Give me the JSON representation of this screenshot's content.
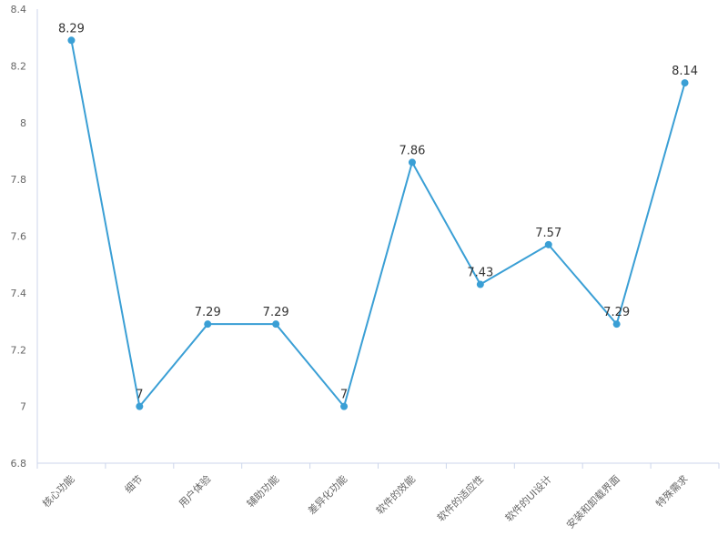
{
  "chart_data": {
    "type": "line",
    "categories": [
      "核心功能",
      "细节",
      "用户体验",
      "辅助功能",
      "差异化功能",
      "软件的效能",
      "软件的适应性",
      "软件的UI设计",
      "安装和卸载界面",
      "特殊需求"
    ],
    "values": [
      8.29,
      7,
      7.29,
      7.29,
      7,
      7.86,
      7.43,
      7.57,
      7.29,
      8.14
    ],
    "color": "#3a9fd5",
    "ylim": [
      6.8,
      8.4
    ],
    "yticks": [
      6.8,
      7,
      7.2,
      7.4,
      7.6,
      7.8,
      8,
      8.2,
      8.4
    ],
    "grid": false
  }
}
